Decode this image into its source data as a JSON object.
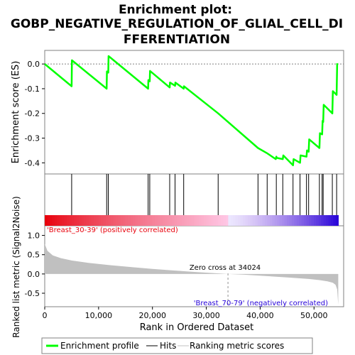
{
  "chart_data": {
    "type": "line",
    "title_lines": [
      "Enrichment plot:",
      "GOBP_NEGATIVE_REGULATION_OF_GLIAL_CELL_DI",
      "FFERENTIATION"
    ],
    "panel1": {
      "ylabel": "Enrichment score (ES)",
      "ylim": [
        -0.445,
        0.055
      ],
      "yticks": [
        0.0,
        -0.1,
        -0.2,
        -0.3,
        -0.4
      ],
      "ytick_labels": [
        "0.0",
        "-0.1",
        "-0.2",
        "-0.3",
        "-0.4"
      ],
      "series": [
        {
          "name": "Enrichment profile",
          "color": "#00ff00",
          "x": [
            0,
            5000,
            5050,
            11500,
            11550,
            11800,
            11850,
            19200,
            19250,
            19500,
            19550,
            23200,
            23250,
            24200,
            24250,
            25800,
            25850,
            32200,
            39600,
            41200,
            42900,
            43000,
            43100,
            44200,
            44300,
            46100,
            46200,
            47400,
            47500,
            48600,
            48700,
            49000,
            49100,
            51000,
            51100,
            51500,
            51600,
            51700,
            51800,
            53400,
            53500,
            54200,
            54300
          ],
          "y": [
            0.0,
            -0.09,
            0.015,
            -0.1,
            -0.03,
            -0.035,
            0.032,
            -0.1,
            -0.065,
            -0.07,
            -0.028,
            -0.095,
            -0.075,
            -0.088,
            -0.075,
            -0.1,
            -0.09,
            -0.2,
            -0.34,
            -0.36,
            -0.385,
            -0.375,
            -0.38,
            -0.385,
            -0.37,
            -0.41,
            -0.385,
            -0.4,
            -0.37,
            -0.375,
            -0.35,
            -0.355,
            -0.305,
            -0.34,
            -0.28,
            -0.285,
            -0.23,
            -0.235,
            -0.165,
            -0.2,
            -0.11,
            -0.125,
            0.003
          ]
        }
      ]
    },
    "hits": {
      "name": "Hits",
      "x": [
        5000,
        11500,
        11800,
        19200,
        19500,
        23200,
        24200,
        25800,
        32200,
        39600,
        41300,
        43000,
        44200,
        46100,
        47400,
        48600,
        49000,
        51000,
        51500,
        51700,
        53400,
        54200
      ]
    },
    "panel2": {
      "ylabel": "Ranked list metric (Signal2Noise)",
      "ylim": [
        -0.85,
        1.25
      ],
      "yticks": [
        1.0,
        0.5,
        0.0,
        -0.5
      ],
      "ytick_labels": [
        "1.0",
        "0.5",
        "0.0",
        "-0.5"
      ],
      "series_name": "Ranking metric scores",
      "fill_color": "#c0c0c0",
      "x": [
        0,
        500,
        1500,
        3000,
        5000,
        8000,
        12000,
        16000,
        20000,
        24000,
        28000,
        31000,
        34024,
        37000,
        40000,
        43000,
        46000,
        49000,
        51000,
        52500,
        53500,
        54000,
        54300,
        54500
      ],
      "y": [
        0.78,
        0.6,
        0.48,
        0.41,
        0.35,
        0.29,
        0.23,
        0.18,
        0.13,
        0.09,
        0.05,
        0.025,
        0.0,
        -0.02,
        -0.045,
        -0.07,
        -0.1,
        -0.13,
        -0.16,
        -0.19,
        -0.23,
        -0.28,
        -0.4,
        -0.8
      ],
      "zero_cross_label": "Zero cross at 34024",
      "zero_cross": 34024,
      "pos_label": "'Breast_30-39' (positively correlated)",
      "neg_label": "'Breast_70-79' (negatively correlated)",
      "pos_color": "#e8000b",
      "neg_color": "#2400d8"
    },
    "xlabel": "Rank in Ordered Dataset",
    "xlim": [
      0,
      55500
    ],
    "xticks": [
      0,
      10000,
      20000,
      30000,
      40000,
      50000
    ],
    "xtick_labels": [
      "0",
      "10,000",
      "20,000",
      "30,000",
      "40,000",
      "50,000"
    ],
    "legend": [
      {
        "label": "Enrichment profile",
        "color": "#00ff00"
      },
      {
        "label": "Hits",
        "color": "#000000"
      },
      {
        "label": "Ranking metric scores",
        "color": "#c0c0c0"
      }
    ],
    "legend_position": "bottom"
  }
}
